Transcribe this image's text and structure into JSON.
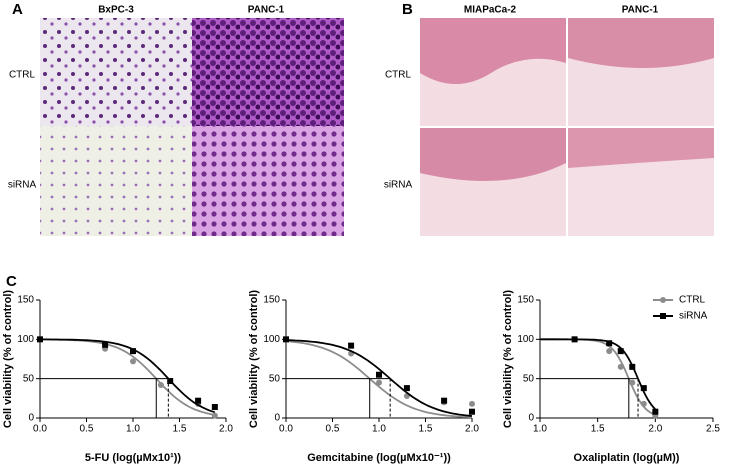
{
  "panels": {
    "a": {
      "label": "A",
      "columns": [
        "BxPC-3",
        "PANC-1"
      ],
      "rows": [
        "CTRL",
        "siRNA"
      ]
    },
    "b": {
      "label": "B",
      "columns": [
        "MIAPaCa-2",
        "PANC-1"
      ],
      "rows": [
        "CTRL",
        "siRNA"
      ]
    },
    "c": {
      "label": "C"
    }
  },
  "chart_data": [
    {
      "type": "line",
      "x_label": "5-FU (log(µMx10¹))",
      "y_label": "Cell viability (% of control)",
      "xlim": [
        0,
        2
      ],
      "xticks": [
        {
          "value": 0,
          "label": "0.0"
        },
        {
          "value": 0.5,
          "label": "0.5"
        },
        {
          "value": 1,
          "label": "1.0"
        },
        {
          "value": 1.5,
          "label": "1.5"
        },
        {
          "value": 2,
          "label": "2.0"
        }
      ],
      "ylim": [
        0,
        150
      ],
      "yticks": [
        0,
        50,
        100,
        150
      ],
      "series": [
        {
          "color": "#8c8c8c",
          "marker": "circle",
          "x": [
            0,
            0.7,
            1,
            1.3,
            1.7,
            1.88
          ],
          "values": [
            100,
            88,
            72,
            42,
            18,
            3
          ],
          "ic50": 1.25,
          "hill_slope": 2.2
        },
        {
          "color": "#000000",
          "marker": "square",
          "x": [
            0,
            0.7,
            1,
            1.4,
            1.7,
            1.88
          ],
          "values": [
            100,
            93,
            85,
            47,
            22,
            14
          ],
          "ic50": 1.38,
          "hill_slope": 2.2
        }
      ]
    },
    {
      "type": "line",
      "x_label": "Gemcitabine (log(µMx10⁻¹))",
      "y_label": "Cell viability (% of control)",
      "xlim": [
        0,
        2
      ],
      "xticks": [
        {
          "value": 0,
          "label": "0.0"
        },
        {
          "value": 0.5,
          "label": "0.5"
        },
        {
          "value": 1,
          "label": "1.0"
        },
        {
          "value": 1.5,
          "label": "1.5"
        },
        {
          "value": 2,
          "label": "2.0"
        }
      ],
      "ylim": [
        0,
        150
      ],
      "yticks": [
        0,
        50,
        100,
        150
      ],
      "series": [
        {
          "color": "#8c8c8c",
          "marker": "circle",
          "x": [
            0,
            0.7,
            1,
            1.3,
            1.7,
            2
          ],
          "values": [
            100,
            82,
            45,
            28,
            20,
            18
          ],
          "ic50": 0.9,
          "hill_slope": 1.8
        },
        {
          "color": "#000000",
          "marker": "square",
          "x": [
            0,
            0.7,
            1,
            1.3,
            1.7,
            2
          ],
          "values": [
            100,
            92,
            55,
            38,
            22,
            8
          ],
          "ic50": 1.12,
          "hill_slope": 1.8
        }
      ]
    },
    {
      "type": "line",
      "x_label": "Oxaliplatin (log(µM))",
      "y_label": "Cell viability (% of control)",
      "xlim": [
        1,
        2.5
      ],
      "xticks": [
        {
          "value": 1,
          "label": "1.0"
        },
        {
          "value": 1.5,
          "label": "1.5"
        },
        {
          "value": 2,
          "label": "2.0"
        },
        {
          "value": 2.5,
          "label": "2.5"
        }
      ],
      "ylim": [
        0,
        150
      ],
      "yticks": [
        0,
        50,
        100,
        150
      ],
      "legend": "upper right",
      "series": [
        {
          "name": "CTRL",
          "color": "#8c8c8c",
          "marker": "circle",
          "x": [
            1.3,
            1.6,
            1.7,
            1.8,
            1.9,
            2
          ],
          "values": [
            100,
            85,
            65,
            45,
            18,
            3
          ],
          "ic50": 1.77,
          "hill_slope": 6
        },
        {
          "name": "siRNA",
          "color": "#000000",
          "marker": "square",
          "x": [
            1.3,
            1.6,
            1.7,
            1.8,
            1.9,
            2
          ],
          "values": [
            100,
            95,
            85,
            65,
            38,
            8
          ],
          "ic50": 1.85,
          "hill_slope": 6
        }
      ]
    }
  ]
}
